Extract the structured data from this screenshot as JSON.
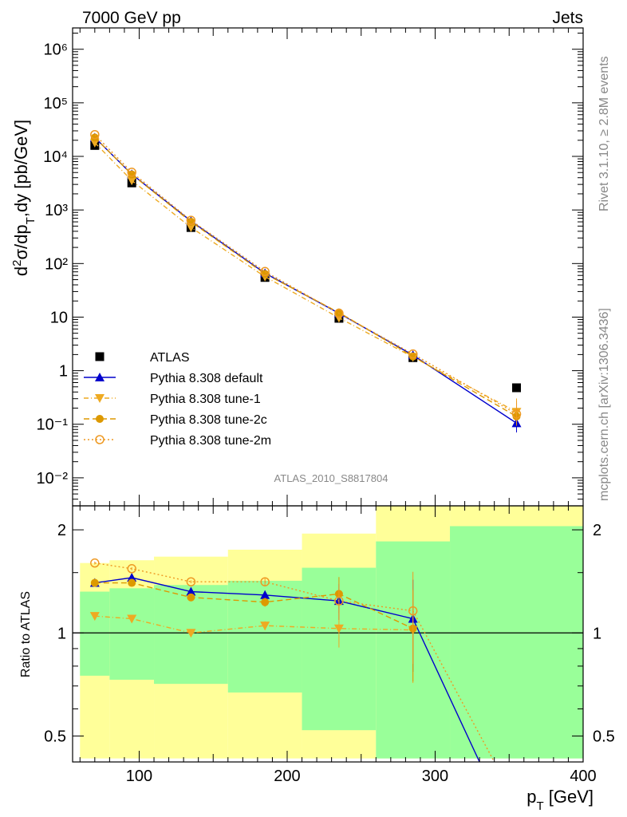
{
  "header": {
    "left": "7000 GeV pp",
    "right": "Jets"
  },
  "side_labels": {
    "rivet": "Rivet 3.1.10, ≥ 2.8M events",
    "mcplots": "mcplots.cern.ch [arXiv:1306.3436]"
  },
  "analysis_label": "ATLAS_2010_S8817804",
  "chart_data": [
    {
      "type": "line",
      "panel": "main",
      "ylabel": "d²σ/dp_T,dy [pb/GeV]",
      "yscale": "log",
      "ylim": [
        0.003,
        2500000
      ],
      "xlim": [
        55,
        400
      ],
      "ytick_labels": [
        "10⁻²",
        "10⁻¹",
        "1",
        "10",
        "10²",
        "10³",
        "10⁴",
        "10⁵",
        "10⁶"
      ],
      "legend_position": "bottom-left",
      "series": [
        {
          "name": "ATLAS",
          "color": "#000000",
          "marker": "square",
          "x": [
            70,
            95,
            135,
            185,
            235,
            285,
            355
          ],
          "y": [
            16000,
            3200,
            470,
            55,
            9.5,
            1.75,
            0.48
          ]
        },
        {
          "name": "Pythia 8.308 default",
          "color": "#0000cc",
          "marker": "triangle-up",
          "line": "solid",
          "x": [
            70,
            95,
            135,
            185,
            235,
            285,
            355
          ],
          "y": [
            22500,
            4650,
            620,
            66,
            11.8,
            1.95,
            0.105
          ]
        },
        {
          "name": "Pythia 8.308 tune-1",
          "color": "#eeaa22",
          "marker": "triangle-down",
          "line": "dashdot",
          "x": [
            70,
            95,
            135,
            185,
            235,
            285,
            355
          ],
          "y": [
            18000,
            3550,
            472,
            57,
            9.7,
            1.8,
            0.17
          ]
        },
        {
          "name": "Pythia 8.308 tune-2c",
          "color": "#dd9900",
          "marker": "circle",
          "line": "dashed",
          "x": [
            70,
            95,
            135,
            185,
            235,
            285,
            355
          ],
          "y": [
            22500,
            4600,
            600,
            64,
            12.2,
            1.85,
            0.14
          ]
        },
        {
          "name": "Pythia 8.308 tune-2m",
          "color": "#ee9922",
          "marker": "circle-open",
          "line": "dotted",
          "x": [
            70,
            95,
            135,
            185,
            235,
            285,
            355
          ],
          "y": [
            25500,
            5050,
            640,
            71,
            11.8,
            2.05,
            0.155
          ]
        }
      ]
    },
    {
      "type": "line",
      "panel": "ratio",
      "ylabel": "Ratio to ATLAS",
      "xlabel": "p_T [GeV]",
      "yscale": "log",
      "ylim": [
        0.42,
        2.35
      ],
      "xlim": [
        55,
        400
      ],
      "xtick_labels": [
        "100",
        "200",
        "300",
        "400"
      ],
      "ytick_labels": [
        "0.5",
        "1",
        "2"
      ],
      "uncertainty_bands": {
        "bin_edges": [
          60,
          80,
          110,
          160,
          210,
          260,
          310,
          400
        ],
        "yellow_low": [
          0.43,
          0.43,
          0.43,
          0.43,
          0.43,
          0.43,
          0.43
        ],
        "yellow_high": [
          1.6,
          1.63,
          1.67,
          1.75,
          1.95,
          2.35,
          2.35
        ],
        "green_low": [
          0.75,
          0.73,
          0.71,
          0.67,
          0.52,
          0.43,
          0.43
        ],
        "green_high": [
          1.32,
          1.35,
          1.38,
          1.42,
          1.55,
          1.85,
          2.05
        ]
      },
      "series": [
        {
          "name": "Pythia 8.308 default",
          "x": [
            70,
            95,
            135,
            185,
            235,
            285,
            330
          ],
          "y": [
            1.4,
            1.45,
            1.32,
            1.29,
            1.24,
            1.1,
            0.42
          ]
        },
        {
          "name": "Pythia 8.308 tune-1",
          "x": [
            70,
            95,
            135,
            185,
            235,
            285
          ],
          "y": [
            1.12,
            1.1,
            1.0,
            1.05,
            1.03,
            1.02
          ]
        },
        {
          "name": "Pythia 8.308 tune-2c",
          "x": [
            70,
            95,
            135,
            185,
            235,
            285
          ],
          "y": [
            1.4,
            1.4,
            1.27,
            1.23,
            1.3,
            1.03
          ]
        },
        {
          "name": "Pythia 8.308 tune-2m",
          "x": [
            70,
            95,
            135,
            185,
            235,
            285,
            340
          ],
          "y": [
            1.6,
            1.54,
            1.41,
            1.41,
            1.24,
            1.16,
            0.42
          ]
        }
      ]
    }
  ]
}
